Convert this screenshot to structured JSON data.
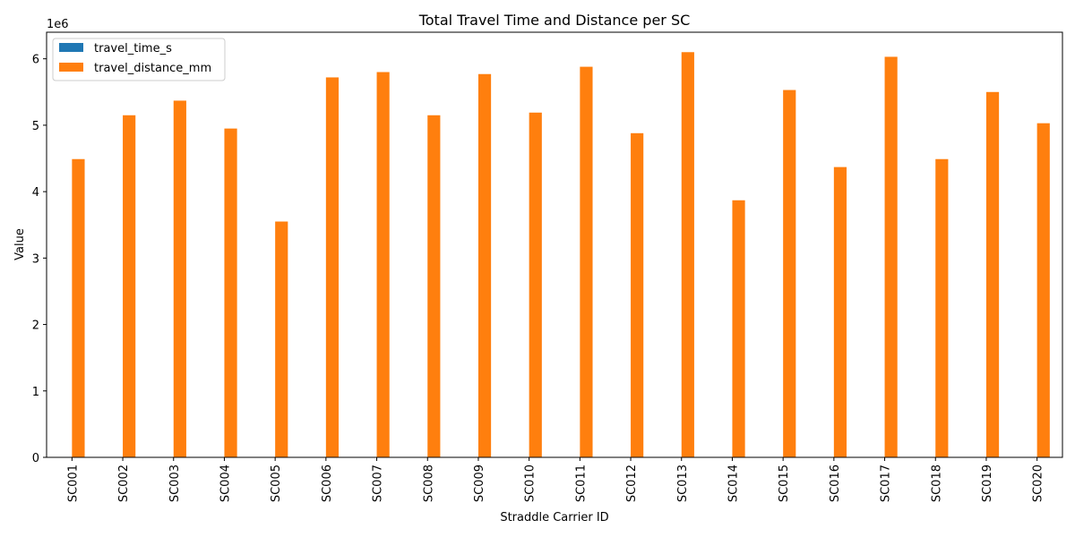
{
  "chart_data": {
    "type": "bar",
    "title": "Total Travel Time and Distance per SC",
    "xlabel": "Straddle Carrier ID",
    "ylabel": "Value",
    "y_offset_label": "1e6",
    "ylim": [
      0,
      6400000
    ],
    "y_ticks": [
      0,
      1000000,
      2000000,
      3000000,
      4000000,
      5000000,
      6000000
    ],
    "y_tick_labels": [
      "0",
      "1",
      "2",
      "3",
      "4",
      "5",
      "6"
    ],
    "grid": false,
    "legend_position": "top-left",
    "categories": [
      "SC001",
      "SC002",
      "SC003",
      "SC004",
      "SC005",
      "SC006",
      "SC007",
      "SC008",
      "SC009",
      "SC010",
      "SC011",
      "SC012",
      "SC013",
      "SC014",
      "SC015",
      "SC016",
      "SC017",
      "SC018",
      "SC019",
      "SC020"
    ],
    "series": [
      {
        "name": "travel_time_s",
        "color": "#1f77b4",
        "values": [
          4000,
          4600,
          4800,
          4400,
          3200,
          5100,
          5200,
          4600,
          5100,
          4600,
          5200,
          4300,
          5400,
          3400,
          4900,
          3900,
          5400,
          4000,
          4900,
          4500
        ]
      },
      {
        "name": "travel_distance_mm",
        "color": "#ff7f0e",
        "values": [
          4490000,
          5150000,
          5370000,
          4950000,
          3550000,
          5720000,
          5800000,
          5150000,
          5770000,
          5190000,
          5880000,
          4880000,
          6100000,
          3870000,
          5530000,
          4370000,
          6030000,
          4490000,
          5500000,
          5030000
        ]
      }
    ]
  }
}
